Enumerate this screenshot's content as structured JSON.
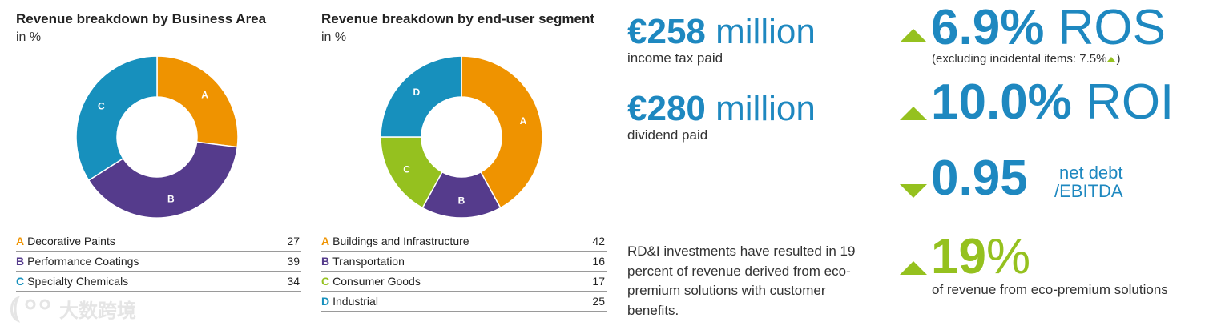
{
  "colors": {
    "orange": "#ef9300",
    "purple": "#553b8c",
    "teal": "#1790bd",
    "green": "#95c11f",
    "blue_text": "#1e88c0"
  },
  "chart_data": [
    {
      "type": "pie",
      "title": "Revenue breakdown by Business Area",
      "subtitle": "in %",
      "categories": [
        "Decorative Paints",
        "Performance Coatings",
        "Specialty Chemicals"
      ],
      "letters": [
        "A",
        "B",
        "C"
      ],
      "values": [
        27,
        39,
        34
      ],
      "colors": [
        "#ef9300",
        "#553b8c",
        "#1790bd"
      ],
      "donut": true
    },
    {
      "type": "pie",
      "title": "Revenue breakdown by end-user segment",
      "subtitle": "in %",
      "categories": [
        "Buildings and Infrastructure",
        "Transportation",
        "Consumer Goods",
        "Industrial"
      ],
      "letters": [
        "A",
        "B",
        "C",
        "D"
      ],
      "values": [
        42,
        16,
        17,
        25
      ],
      "colors": [
        "#ef9300",
        "#553b8c",
        "#95c11f",
        "#1790bd"
      ],
      "donut": true
    }
  ],
  "kpis": {
    "tax": {
      "value": "€258",
      "unit": "million",
      "caption": "income tax paid"
    },
    "dividend": {
      "value": "€280",
      "unit": "million",
      "caption": "dividend paid"
    },
    "rdi_text": "RD&I investments have resulted in 19 percent of revenue derived from eco-premium solutions with customer benefits.",
    "ros": {
      "value": "6.9%",
      "suffix": "ROS",
      "note_prefix": "(excluding incidental items: 7.5%",
      "note_suffix": ")"
    },
    "roi": {
      "value": "10.0%",
      "suffix": "ROI"
    },
    "debt": {
      "value": "0.95",
      "label_line1": "net debt",
      "label_line2": "/EBITDA"
    },
    "eco": {
      "value": "19",
      "suffix": "%",
      "caption": "of revenue from eco-premium solutions"
    }
  },
  "watermark": {
    "text": "大数跨境"
  }
}
